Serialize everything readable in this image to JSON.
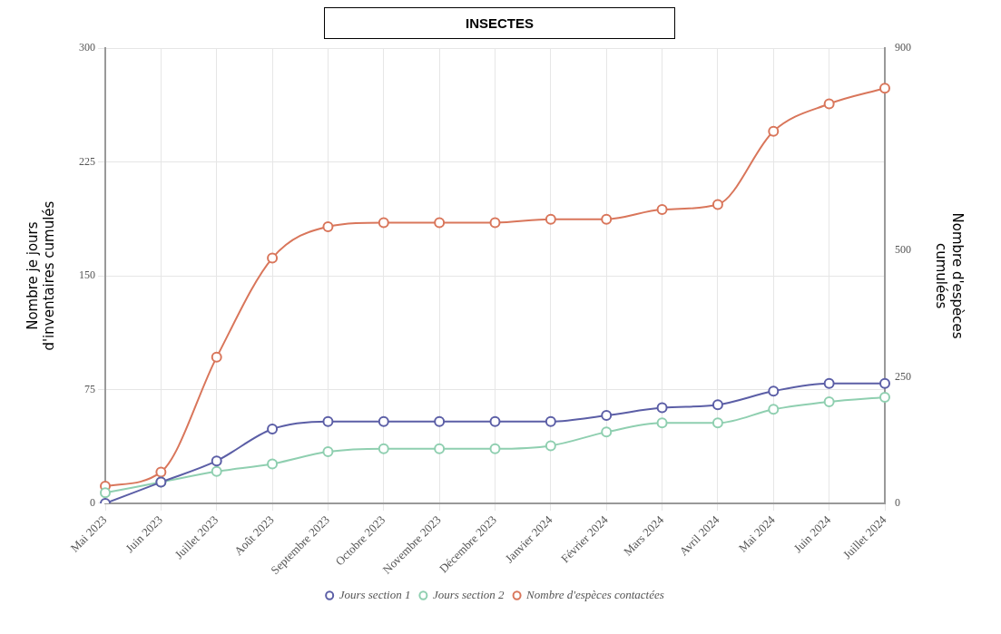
{
  "chart_data": {
    "type": "line",
    "title": "INSECTES",
    "ylabel": "Nombre je jours\nd'inventaires cumulés",
    "y2label": "Nombre d'espèces\ncumulées",
    "categories": [
      "Mai 2023",
      "Juin 2023",
      "Juillet 2023",
      "Août 2023",
      "Septembre 2023",
      "Octobre 2023",
      "Novembre 2023",
      "Décembre 2023",
      "Janvier 2024",
      "Février 2024",
      "Mars 2024",
      "Avril 2024",
      "Mai 2024",
      "Juin 2024",
      "Juillet 2024"
    ],
    "series": [
      {
        "name": "Jours section 1",
        "color": "#5b5ea6",
        "values": [
          0,
          14,
          28,
          49,
          54,
          54,
          54,
          54,
          54,
          58,
          63,
          65,
          74,
          79,
          79
        ]
      },
      {
        "name": "Jours section 2",
        "color": "#8fcfb0",
        "values": [
          7,
          14,
          21,
          26,
          34,
          36,
          36,
          36,
          38,
          47,
          53,
          53,
          62,
          67,
          70
        ]
      },
      {
        "name": "Nombre d'espèces contactées",
        "color": "#d9765b",
        "axis": "y2",
        "values": [
          34,
          62,
          289,
          485,
          547,
          555,
          555,
          555,
          562,
          562,
          581,
          591,
          736,
          790,
          821
        ]
      }
    ],
    "ylim": [
      0,
      300
    ],
    "yticks": [
      0,
      75,
      150,
      225,
      300
    ],
    "y2lim": [
      0,
      900
    ],
    "y2ticks": [
      0,
      250,
      500,
      900
    ],
    "grid": true,
    "legend": "bottom",
    "marker": "circle",
    "line_style": "solid"
  }
}
